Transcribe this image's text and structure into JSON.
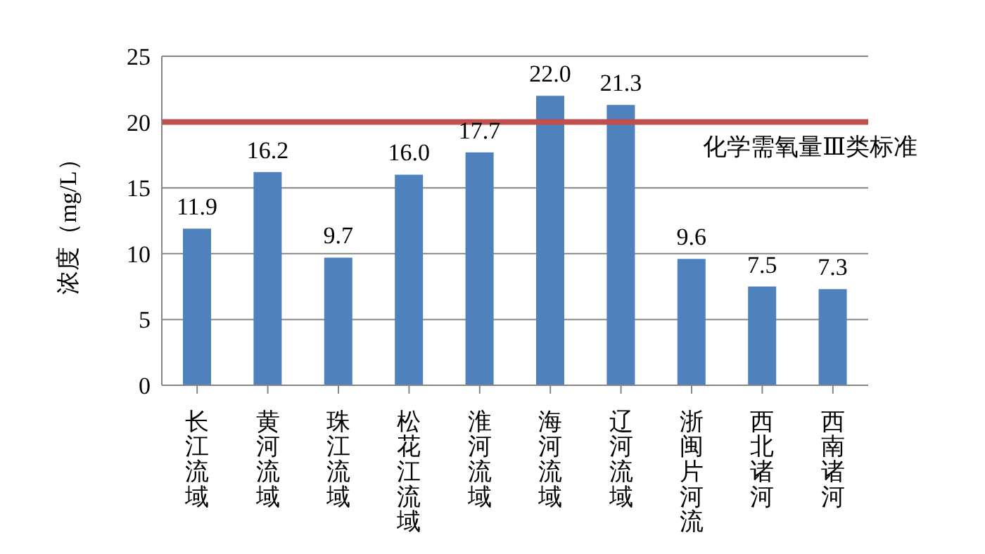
{
  "chart_data": {
    "type": "bar",
    "ylabel": "浓度（mg/L）",
    "categories": [
      "长江流域",
      "黄河流域",
      "珠江流域",
      "松花江流域",
      "淮河流域",
      "海河流域",
      "辽河流域",
      "浙闽片河流",
      "西北诸河",
      "西南诸河"
    ],
    "values": [
      11.9,
      16.2,
      9.7,
      16.0,
      17.7,
      22.0,
      21.3,
      9.6,
      7.5,
      7.3
    ],
    "value_labels": [
      "11.9",
      "16.2",
      "9.7",
      "16.0",
      "17.7",
      "22.0",
      "21.3",
      "9.6",
      "7.5",
      "7.3"
    ],
    "color": "#4f81bd",
    "ylim": [
      0,
      25
    ],
    "yticks": [
      0,
      5,
      10,
      15,
      20,
      25
    ],
    "grid": "y",
    "ref_lines": [
      {
        "axis": "y",
        "value": 20,
        "label": "化学需氧量Ⅲ类标准",
        "color": "#c0504d"
      }
    ]
  }
}
